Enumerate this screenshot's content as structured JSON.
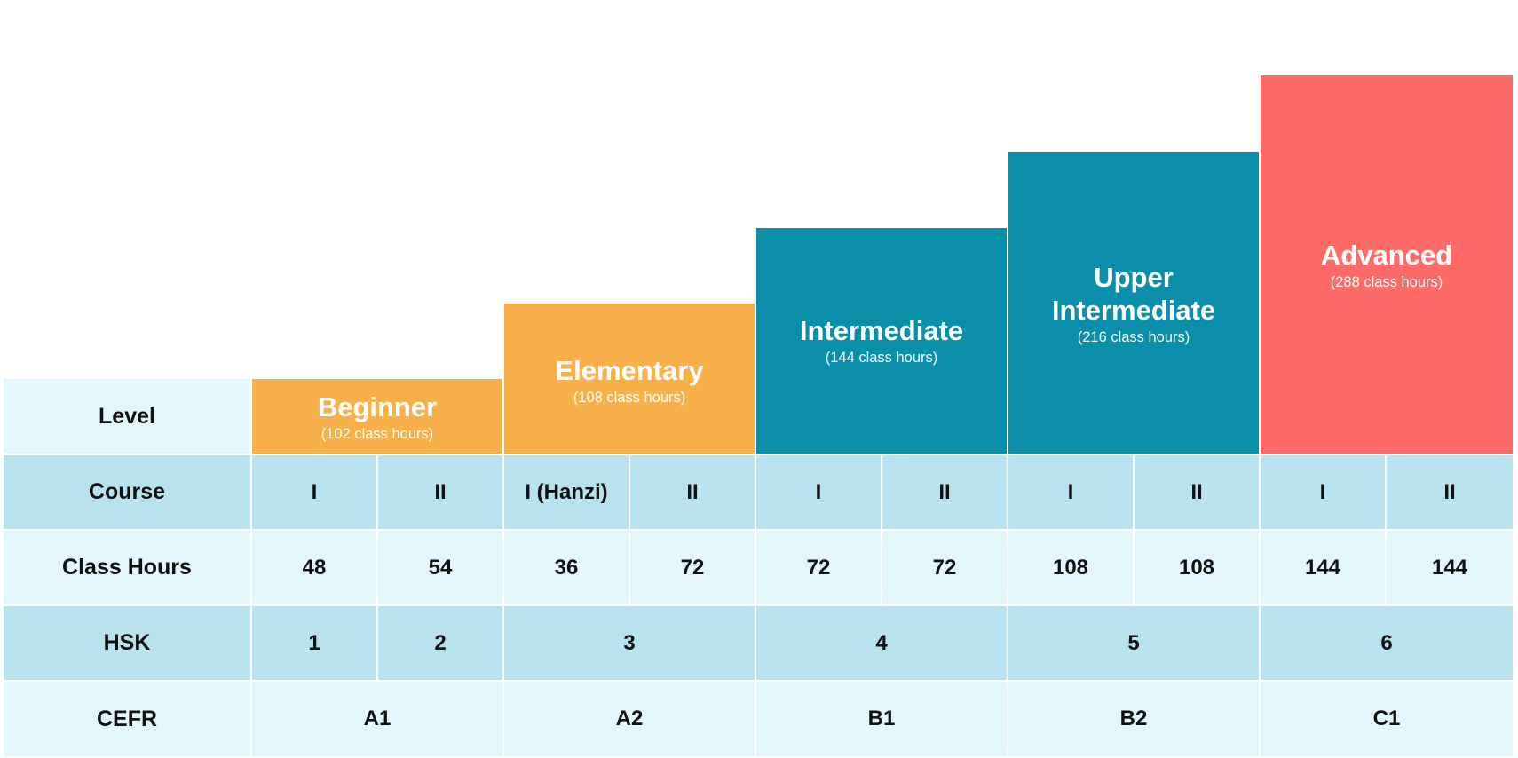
{
  "levels": [
    {
      "name": "Beginner",
      "hours": "(102 class hours)"
    },
    {
      "name": "Elementary",
      "hours": "(108 class hours)"
    },
    {
      "name": "Intermediate",
      "hours": "(144 class hours)"
    },
    {
      "name": "Upper Intermediate",
      "name_line1": "Upper",
      "name_line2": "Intermediate",
      "hours": "(216 class hours)"
    },
    {
      "name": "Advanced",
      "hours": "(288 class hours)"
    }
  ],
  "row_labels": {
    "level": "Level",
    "course": "Course",
    "class_hours": "Class Hours",
    "hsk": "HSK",
    "cefr": "CEFR"
  },
  "courses": [
    "I",
    "II",
    "I (Hanzi)",
    "II",
    "I",
    "II",
    "I",
    "II",
    "I",
    "II"
  ],
  "class_hours": [
    "48",
    "54",
    "36",
    "72",
    "72",
    "72",
    "108",
    "108",
    "144",
    "144"
  ],
  "hsk": [
    "1",
    "2",
    "3",
    "4",
    "5",
    "6"
  ],
  "cefr": [
    "A1",
    "A2",
    "B1",
    "B2",
    "C1"
  ],
  "colors": {
    "beginner_elementary": "#f8b14a",
    "intermediate_upper": "#0b8ea9",
    "advanced": "#fd6b69",
    "row_light": "#e2f6fc",
    "row_dark": "#b9e2ef"
  }
}
